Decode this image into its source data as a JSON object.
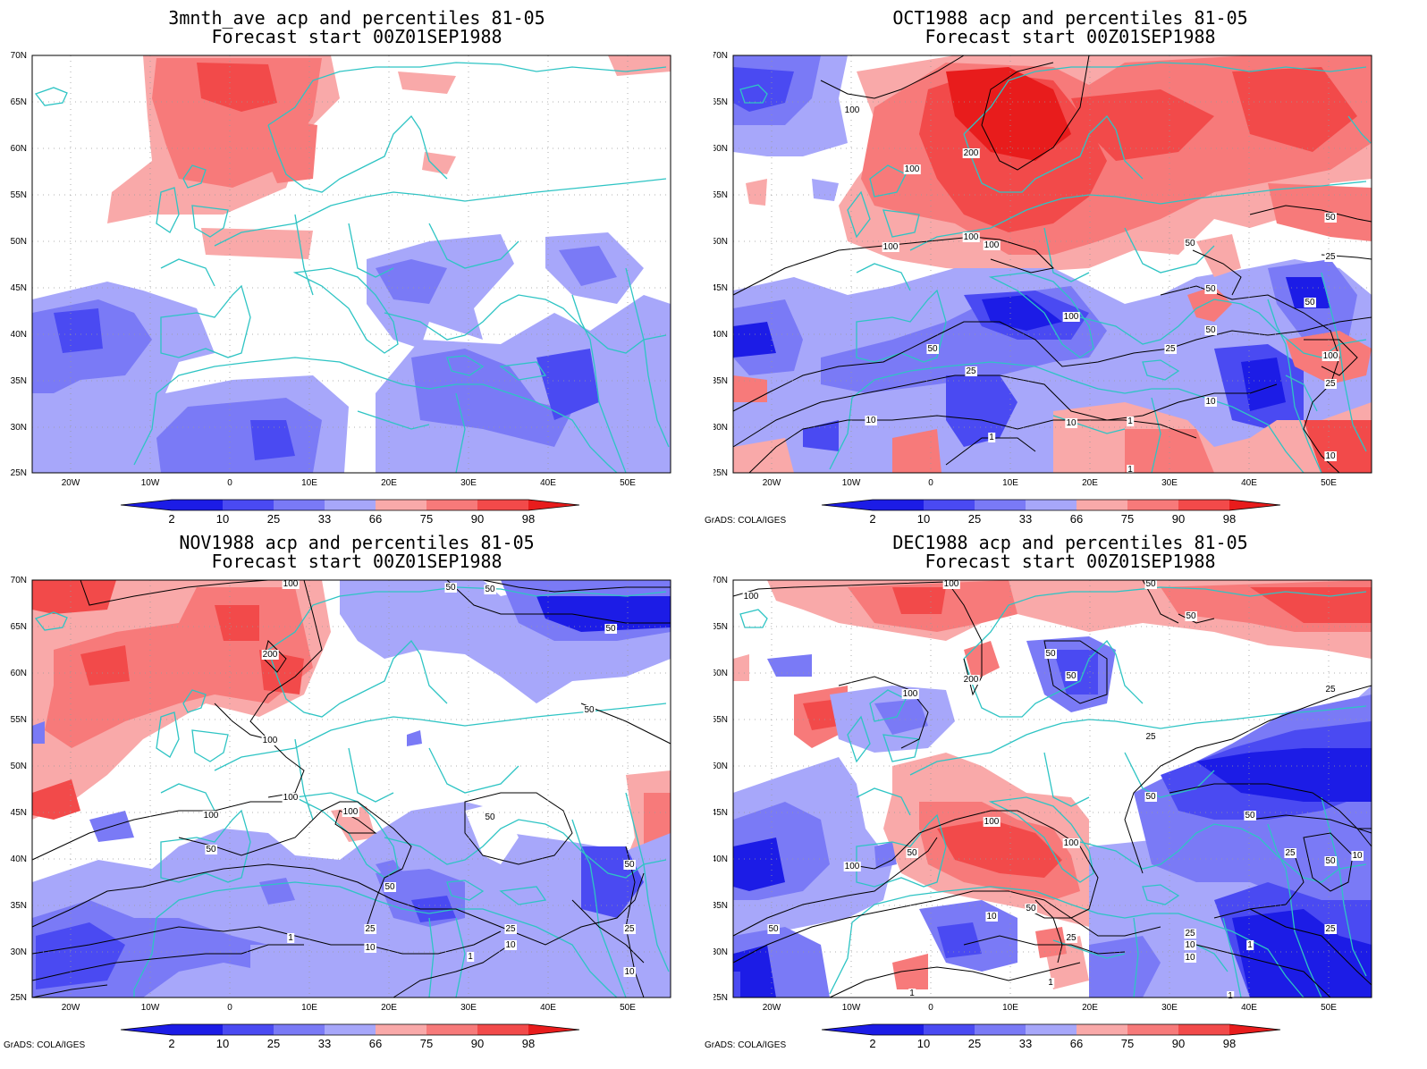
{
  "colors": {
    "b1": "#1c1ce6",
    "b2": "#4a4af2",
    "b3": "#7a7af6",
    "b4": "#a7a7fa",
    "r1": "#f9a9a9",
    "r2": "#f77a7a",
    "r3": "#f24a4a",
    "r4": "#e81c1c",
    "coast": "#2ec4c4",
    "contour": "#000000"
  },
  "axes": {
    "lat_labels": [
      "70N",
      "65N",
      "60N",
      "55N",
      "50N",
      "45N",
      "40N",
      "35N",
      "30N",
      "25N"
    ],
    "lon_labels": [
      "20W",
      "10W",
      "0",
      "10E",
      "20E",
      "30E",
      "40E",
      "50E"
    ]
  },
  "colorbar": {
    "labels": [
      "2",
      "10",
      "25",
      "33",
      "66",
      "75",
      "90",
      "98"
    ]
  },
  "credit": "GrADS: COLA/IGES",
  "panels": [
    {
      "title1": "3mnth_ave acp and percentiles 81-05",
      "title2": "Forecast start 00Z01SEP1988",
      "credit": "",
      "contour_labels": []
    },
    {
      "title1": "OCT1988 acp and percentiles 81-05",
      "title2": "Forecast start 00Z01SEP1988",
      "credit": "GrADS: COLA/IGES",
      "contour_labels": [
        "100",
        "200",
        "100",
        "100",
        "100",
        "100",
        "50",
        "25",
        "50",
        "50",
        "50",
        "100",
        "10",
        "10",
        "1",
        "1",
        "25",
        "50",
        "10",
        "25",
        "100",
        "25",
        "10",
        "50",
        "1",
        "10"
      ]
    },
    {
      "title1": "NOV1988 acp and percentiles 81-05",
      "title2": "Forecast start 00Z01SEP1988",
      "credit": "GrADS: COLA/IGES",
      "contour_labels": [
        "100",
        "50",
        "50",
        "50",
        "200",
        "100",
        "50",
        "100",
        "100",
        "100",
        "50",
        "50",
        "50",
        "25",
        "10",
        "1",
        "25",
        "10",
        "1",
        "50",
        "25",
        "10"
      ]
    },
    {
      "title1": "DEC1988 acp and percentiles 81-05",
      "title2": "Forecast start 00Z01SEP1988",
      "credit": "GrADS: COLA/IGES",
      "contour_labels": [
        "100",
        "100",
        "50",
        "200",
        "100",
        "50",
        "50",
        "50",
        "25",
        "25",
        "50",
        "100",
        "100",
        "100",
        "50",
        "50",
        "50",
        "25",
        "50",
        "10",
        "10",
        "25",
        "1",
        "1",
        "25",
        "10",
        "1",
        "1",
        "25",
        "50",
        "10"
      ]
    }
  ]
}
